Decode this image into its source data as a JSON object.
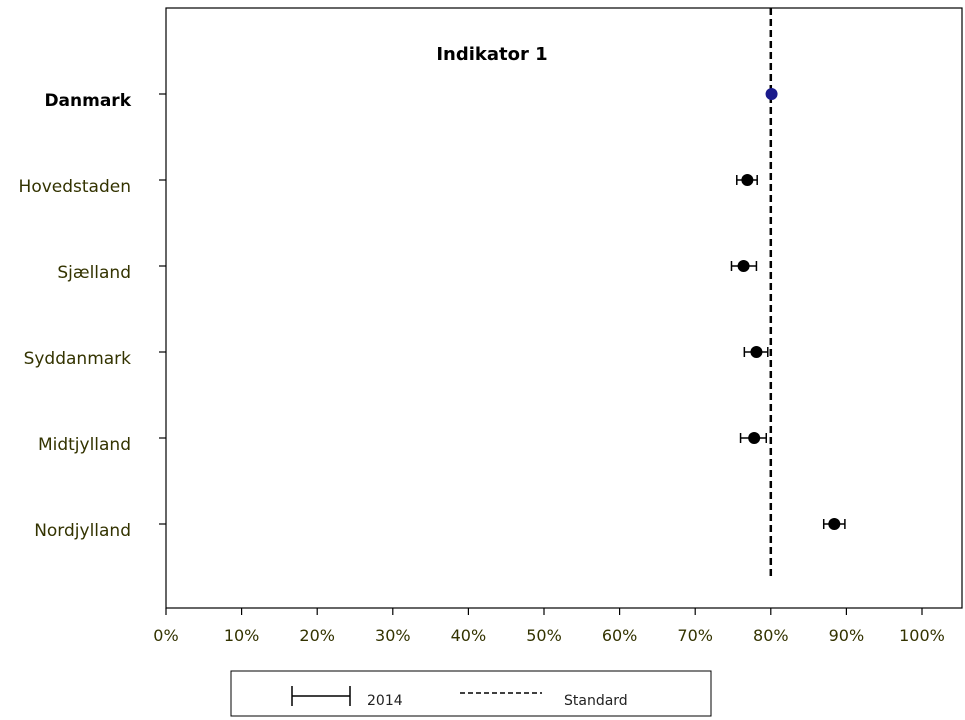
{
  "chart_data": {
    "type": "scatter",
    "title": "Indikator 1",
    "xlabel": "",
    "ylabel": "",
    "xlim": [
      0,
      100
    ],
    "x_ticks": [
      "0%",
      "10%",
      "20%",
      "30%",
      "40%",
      "50%",
      "60%",
      "70%",
      "80%",
      "90%",
      "100%"
    ],
    "x_unit": "%",
    "grid": false,
    "categories": [
      "Danmark",
      "Hovedstaden",
      "Sjælland",
      "Syddanmark",
      "Midtjylland",
      "Nordjylland"
    ],
    "bold_categories": [
      "Danmark"
    ],
    "series": [
      {
        "name": "2014",
        "values": [
          80.1,
          76.9,
          76.4,
          78.1,
          77.8,
          88.4
        ],
        "ci_low": [
          80.1,
          75.5,
          74.8,
          76.5,
          76.0,
          87.0
        ],
        "ci_high": [
          80.1,
          78.2,
          78.1,
          79.6,
          79.4,
          89.8
        ],
        "point_colors": [
          "#1a1a8c",
          "#000000",
          "#000000",
          "#000000",
          "#000000",
          "#000000"
        ]
      }
    ],
    "reference_line": {
      "name": "Standard",
      "value": 80,
      "style": "dashed"
    },
    "legend": {
      "placement": "bottom-center",
      "entries": [
        {
          "label": "2014",
          "symbol": "error-bar"
        },
        {
          "label": "Standard",
          "symbol": "dashed-line"
        }
      ]
    }
  }
}
